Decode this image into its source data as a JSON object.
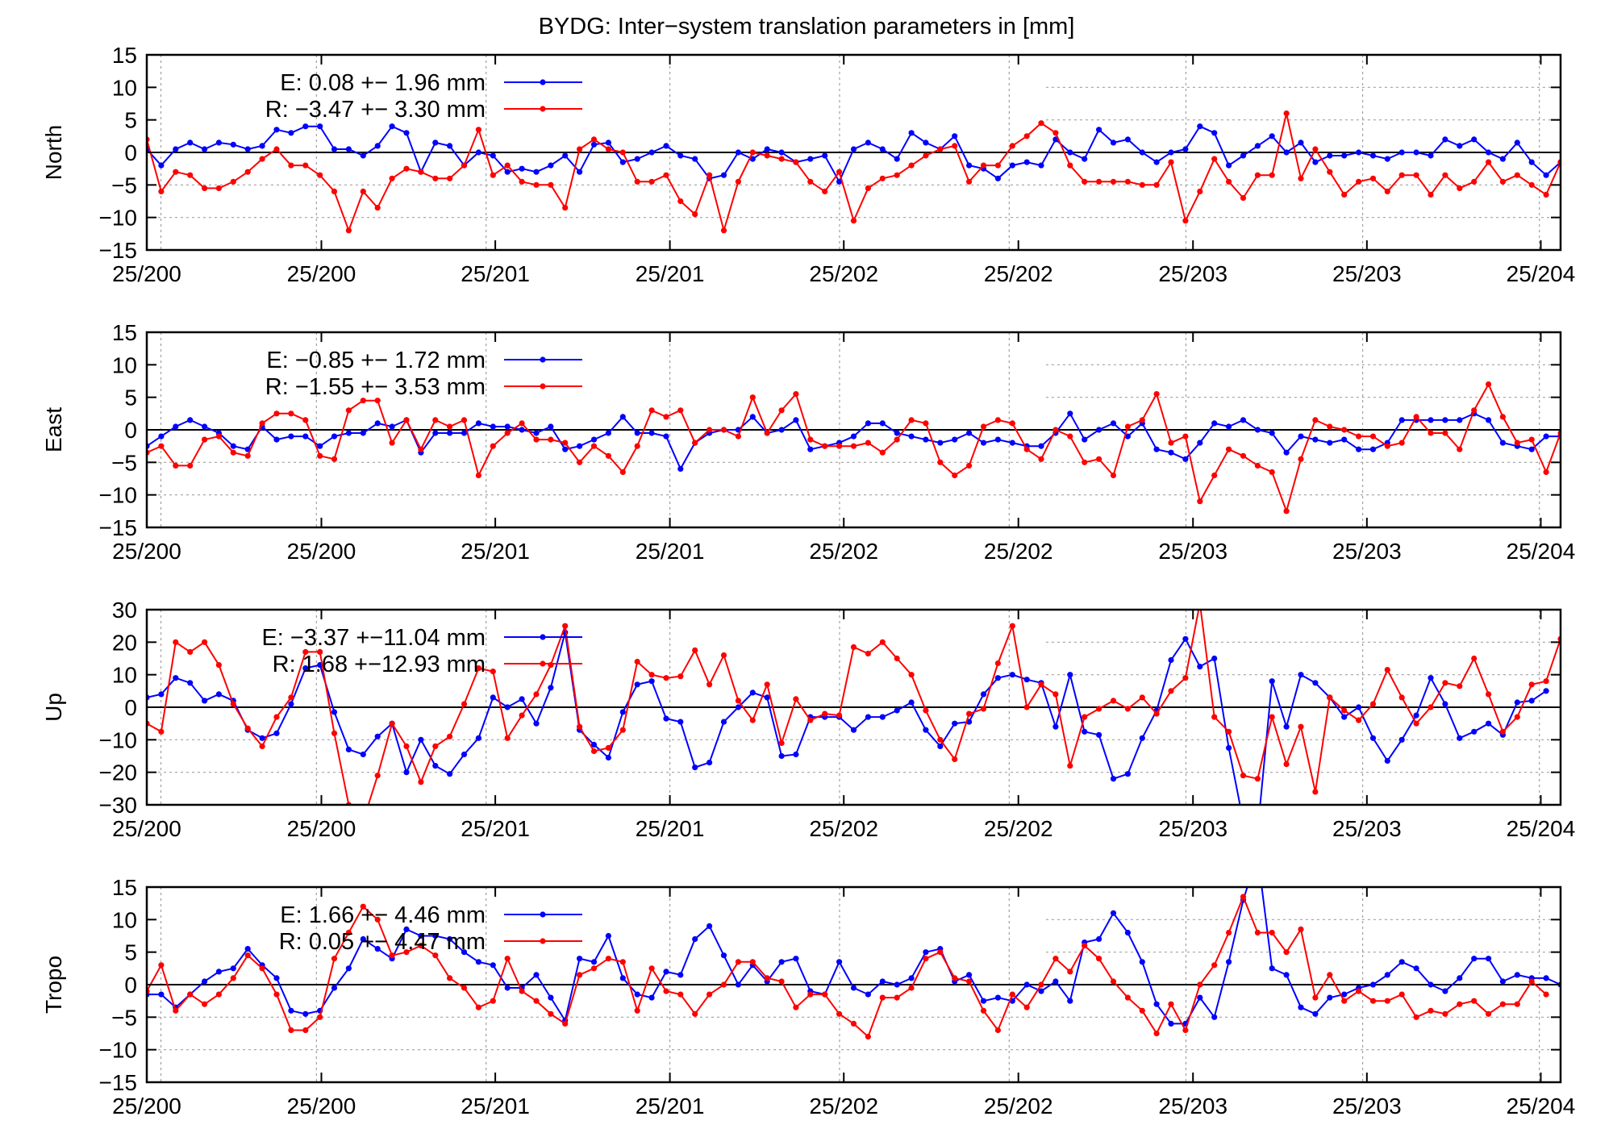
{
  "figure": {
    "title": "BYDG: Inter−system translation parameters in [mm]"
  },
  "colors": {
    "E": "#0000ff",
    "R": "#ff0000",
    "zero_line": "#000000",
    "grid": "#a0a0a0"
  },
  "chart_data": [
    {
      "type": "line",
      "ylabel": "North",
      "ylim": [
        -15,
        15
      ],
      "yticks": [
        "15",
        "10",
        "5",
        "0",
        "−5",
        "−10",
        "−15"
      ],
      "xlim": [
        0,
        98
      ],
      "xtick_labels": [
        "25/200",
        "25/200",
        "25/201",
        "25/201",
        "25/202",
        "25/202",
        "25/203",
        "25/203",
        "25/204"
      ],
      "grid": "dotted",
      "legend_position": "top-left",
      "series": [
        {
          "name": "E",
          "legend": "E:   0.08 +− 1.96 mm",
          "color": "E",
          "values": [
            0.5,
            -2,
            0.5,
            1.5,
            0.5,
            1.5,
            1.2,
            0.5,
            1,
            3.5,
            3,
            4,
            4,
            0.5,
            0.5,
            -0.5,
            1,
            4,
            3,
            -3,
            1.5,
            1,
            -2,
            0,
            -0.5,
            -3,
            -2.5,
            -3,
            -2,
            -0.5,
            -3,
            1.2,
            1.5,
            -1.5,
            -1,
            0,
            1,
            -0.5,
            -1,
            -4,
            -3.5,
            0,
            -1,
            0.5,
            0,
            -1.5,
            -1,
            -0.5,
            -4.5,
            0.5,
            1.5,
            0.5,
            -1,
            3,
            1.5,
            0.5,
            2.5,
            -2,
            -2.5,
            -4,
            -2,
            -1.5,
            -2,
            2,
            0,
            -1,
            3.5,
            1.5,
            2,
            0,
            -1.5,
            0,
            0.5,
            4,
            3,
            -2,
            -0.5,
            1,
            2.5,
            0,
            1.5,
            -1.5,
            -0.5,
            -0.5,
            0,
            -0.5,
            -1,
            0,
            0,
            -0.5,
            2,
            1,
            2,
            0,
            -1,
            1.5,
            -1.5,
            -3.5,
            -1.5
          ]
        },
        {
          "name": "R",
          "legend": "R:  −3.47 +− 3.30 mm",
          "color": "R",
          "values": [
            2,
            -6,
            -3,
            -3.5,
            -5.5,
            -5.5,
            -4.5,
            -3,
            -1,
            0.5,
            -2,
            -2,
            -3.5,
            -6,
            -12,
            -6,
            -8.5,
            -4,
            -2.5,
            -3,
            -4,
            -4,
            -2,
            3.5,
            -3.5,
            -2,
            -4.5,
            -5,
            -5,
            -8.5,
            0.5,
            2,
            0.5,
            0,
            -4.5,
            -4.5,
            -3.5,
            -7.5,
            -9.5,
            -3.5,
            -12,
            -4.5,
            0,
            -0.5,
            -1,
            -1.5,
            -4.5,
            -6,
            -3,
            -10.5,
            -5.5,
            -4,
            -3.5,
            -2,
            -0.5,
            0.5,
            1,
            -4.5,
            -2,
            -2,
            1,
            2.5,
            4.5,
            3,
            -2,
            -4.5,
            -4.5,
            -4.5,
            -4.5,
            -5,
            -5,
            -1.5,
            -10.5,
            -6,
            -1,
            -4.5,
            -7,
            -3.5,
            -3.5,
            6,
            -4,
            0.5,
            -3,
            -6.5,
            -4.5,
            -4,
            -6,
            -3.5,
            -3.5,
            -6.5,
            -3.5,
            -5.5,
            -4.5,
            -1.5,
            -4.5,
            -3.5,
            -5,
            -6.5,
            -1.5
          ]
        }
      ]
    },
    {
      "type": "line",
      "ylabel": "East",
      "ylim": [
        -15,
        15
      ],
      "yticks": [
        "15",
        "10",
        "5",
        "0",
        "−5",
        "−10",
        "−15"
      ],
      "xlim": [
        0,
        98
      ],
      "xtick_labels": [
        "25/200",
        "25/200",
        "25/201",
        "25/201",
        "25/202",
        "25/202",
        "25/203",
        "25/203",
        "25/204"
      ],
      "grid": "dotted",
      "legend_position": "top-left",
      "series": [
        {
          "name": "E",
          "legend": "E:  −0.85 +− 1.72 mm",
          "color": "E",
          "values": [
            -2.5,
            -1,
            0.5,
            1.5,
            0.5,
            -0.5,
            -2.5,
            -3,
            0.5,
            -1.5,
            -1,
            -1,
            -2.5,
            -1,
            -0.5,
            -0.5,
            1,
            0.5,
            1.5,
            -3.5,
            -0.5,
            -0.5,
            -0.5,
            1,
            0.5,
            0.5,
            0,
            -0.5,
            0.5,
            -3,
            -2.5,
            -1.5,
            -0.5,
            2,
            -0.5,
            -0.5,
            -1,
            -6,
            -2,
            -0.5,
            0,
            0,
            2,
            -0.5,
            0,
            1.5,
            -3,
            -2.5,
            -2,
            -1,
            1,
            1,
            -0.5,
            -1,
            -1.5,
            -2,
            -1.5,
            -0.5,
            -2,
            -1.5,
            -2,
            -2.5,
            -2.5,
            -0.5,
            2.5,
            -1.5,
            0,
            1,
            -1,
            1,
            -3,
            -3.5,
            -4.5,
            -2,
            1,
            0.5,
            1.5,
            0,
            -0.5,
            -3.5,
            -1,
            -1.5,
            -2,
            -1.5,
            -3,
            -3,
            -2,
            1.5,
            1.5,
            1.5,
            1.5,
            1.5,
            2.5,
            1.5,
            -2,
            -2.5,
            -3,
            -1,
            -1
          ]
        },
        {
          "name": "R",
          "legend": "R:  −1.55 +− 3.53 mm",
          "color": "R",
          "values": [
            -3.5,
            -2.5,
            -5.5,
            -5.5,
            -1.5,
            -1,
            -3.5,
            -4,
            1,
            2.5,
            2.5,
            1.5,
            -4,
            -4.5,
            3,
            4.5,
            4.5,
            -2,
            1.5,
            -3,
            1.5,
            0.5,
            1.5,
            -7,
            -2.5,
            -0.5,
            1,
            -1.5,
            -1.5,
            -2,
            -5,
            -2.5,
            -4,
            -6.5,
            -2.5,
            3,
            2,
            3,
            -2,
            0,
            0,
            -1,
            5,
            -0.5,
            3,
            5.5,
            -1.5,
            -2.5,
            -2.5,
            -2.5,
            -2,
            -3.5,
            -1.5,
            1.5,
            1,
            -5,
            -7,
            -5.5,
            0.5,
            1.5,
            1,
            -3,
            -4.5,
            0,
            -1,
            -5,
            -4.5,
            -7,
            0.5,
            1.5,
            5.5,
            -2,
            -1,
            -11,
            -7,
            -3,
            -4,
            -5.5,
            -6.5,
            -12.5,
            -4.5,
            1.5,
            0.5,
            0,
            -1,
            -1,
            -2.5,
            -2,
            2,
            -0.5,
            -0.5,
            -3,
            3,
            7,
            2,
            -2,
            -1.5,
            -6.5,
            -0.5,
            -2.5
          ]
        }
      ]
    },
    {
      "type": "line",
      "ylabel": "Up",
      "ylim": [
        -30,
        30
      ],
      "yticks": [
        "30",
        "20",
        "10",
        "0",
        "−10",
        "−20",
        "−30"
      ],
      "xlim": [
        0,
        98
      ],
      "xtick_labels": [
        "25/200",
        "25/200",
        "25/201",
        "25/201",
        "25/202",
        "25/202",
        "25/203",
        "25/203",
        "25/204"
      ],
      "grid": "dotted",
      "legend_position": "top-left",
      "series": [
        {
          "name": "E",
          "legend": "E:  −3.37 +−11.04 mm",
          "color": "E",
          "values": [
            3,
            4,
            9,
            7.5,
            2,
            4,
            2,
            -7,
            -9.5,
            -8,
            1,
            12,
            13,
            -1.5,
            -13,
            -14.5,
            -9,
            -5,
            -20,
            -10,
            -18,
            -20.5,
            -14.5,
            -9.5,
            3,
            0,
            2.5,
            -5,
            6,
            23,
            -7,
            -11.5,
            -15.5,
            -1.5,
            7,
            8,
            -3.5,
            -4.5,
            -18.5,
            -17,
            -4.5,
            0,
            4.5,
            3,
            -15,
            -14.5,
            -3,
            -3,
            -3,
            -7,
            -3,
            -3,
            -1,
            1.5,
            -7,
            -12,
            -5,
            -4.5,
            4,
            9,
            10,
            8.5,
            7.5,
            -6,
            10,
            -7.5,
            -8.5,
            -22,
            -20.5,
            -9.5,
            -1,
            14.5,
            21,
            12.5,
            15,
            -12.5,
            -35,
            -38,
            8,
            -6,
            10,
            7.5,
            3,
            -3,
            0,
            -9.5,
            -16.5,
            -10,
            -2.5,
            9,
            1,
            -9.5,
            -7.5,
            -5,
            -8.5,
            1.5,
            2,
            5
          ]
        },
        {
          "name": "R",
          "legend": "R:   1.68 +−12.93 mm",
          "color": "R",
          "values": [
            -5,
            -7.5,
            20,
            17,
            20,
            13,
            1,
            -6.5,
            -12,
            -3,
            3,
            17,
            17,
            -8,
            -30,
            -35,
            -21,
            -5,
            -12,
            -23,
            -12,
            -9,
            1,
            12,
            11,
            -9.5,
            -2.5,
            4,
            13,
            25,
            -6,
            -13.5,
            -12.5,
            -7,
            14,
            10,
            9,
            9.5,
            17.5,
            7,
            16,
            2,
            -4,
            7,
            -11,
            2.5,
            -4,
            -2,
            -2.5,
            18.5,
            16.5,
            20,
            15,
            10,
            -1,
            -10,
            -16,
            -2,
            -0.5,
            13.5,
            25,
            0,
            7,
            4,
            -18,
            -3,
            -0.5,
            2,
            -0.5,
            3,
            -2,
            5,
            9,
            32,
            -3,
            -7.5,
            -21,
            -22,
            -3,
            -17.5,
            -6,
            -26,
            3,
            -1,
            -4,
            1,
            11.5,
            3,
            -5,
            0,
            7.5,
            6.5,
            15,
            4,
            -7.5,
            -3,
            7,
            8,
            21,
            10,
            20.5
          ]
        }
      ]
    },
    {
      "type": "line",
      "ylabel": "Tropo",
      "ylim": [
        -15,
        15
      ],
      "yticks": [
        "15",
        "10",
        "5",
        "0",
        "−5",
        "−10",
        "−15"
      ],
      "xlim": [
        0,
        98
      ],
      "xtick_labels": [
        "25/200",
        "25/200",
        "25/201",
        "25/201",
        "25/202",
        "25/202",
        "25/203",
        "25/203",
        "25/204"
      ],
      "grid": "dotted",
      "legend_position": "top-left",
      "series": [
        {
          "name": "E",
          "legend": "E:   1.66 +− 4.46 mm",
          "color": "E",
          "values": [
            -1.5,
            -1.5,
            -3.5,
            -1.5,
            0.5,
            2,
            2.5,
            5.5,
            3,
            1,
            -4,
            -4.5,
            -4,
            -0.5,
            2.5,
            7,
            5.5,
            4,
            8.5,
            7.5,
            7.5,
            7,
            5,
            3.5,
            3,
            -0.5,
            -0.5,
            1.5,
            -2,
            -5.5,
            4,
            3.5,
            7.5,
            1,
            -1.5,
            -2,
            2,
            1.5,
            7,
            9,
            4.5,
            0,
            3,
            0.5,
            3.5,
            4,
            -1,
            -1.5,
            3.5,
            -0.5,
            -1.5,
            0.5,
            0,
            1,
            5,
            5.5,
            0.5,
            1.5,
            -2.5,
            -2,
            -2.5,
            0,
            -1,
            0.5,
            -2.5,
            6.5,
            7,
            11,
            8,
            3.5,
            -3,
            -6,
            -6,
            -2,
            -5,
            3.5,
            13,
            20,
            2.5,
            1.5,
            -3.5,
            -4.5,
            -2,
            -1.5,
            -0.5,
            0,
            1.5,
            3.5,
            2.5,
            0,
            -1,
            1,
            4,
            4,
            0.5,
            1.5,
            1,
            1,
            0
          ]
        },
        {
          "name": "R",
          "legend": "R:   0.05 +− 4.47 mm",
          "color": "R",
          "values": [
            -1,
            3,
            -4,
            -1.5,
            -3,
            -1.5,
            1,
            4.5,
            2.5,
            -1.5,
            -7,
            -7,
            -5,
            4,
            8,
            12,
            10,
            4.5,
            5,
            6,
            4.5,
            1,
            -0.5,
            -3.5,
            -2.5,
            4,
            -1,
            -2.5,
            -4.5,
            -6,
            1.5,
            2.5,
            4,
            3.5,
            -4,
            2.5,
            -1,
            -1.5,
            -4.5,
            -1.5,
            0,
            3.5,
            3.5,
            1,
            0.5,
            -3.5,
            -1.5,
            -1.5,
            -4.5,
            -6,
            -8,
            -2,
            -2,
            -0.5,
            4,
            5,
            1,
            0.5,
            -4,
            -7,
            -1.5,
            -3.5,
            0,
            4,
            2,
            6,
            4,
            0.5,
            -2,
            -4,
            -7.5,
            -3,
            -7,
            0,
            3,
            8,
            13.5,
            8,
            8,
            5,
            8.5,
            -2,
            1.5,
            -2.5,
            -1,
            -2.5,
            -2.5,
            -1.5,
            -5,
            -4,
            -4.5,
            -3,
            -2.5,
            -4.5,
            -3,
            -3,
            0.5,
            -1.5
          ]
        }
      ]
    }
  ]
}
